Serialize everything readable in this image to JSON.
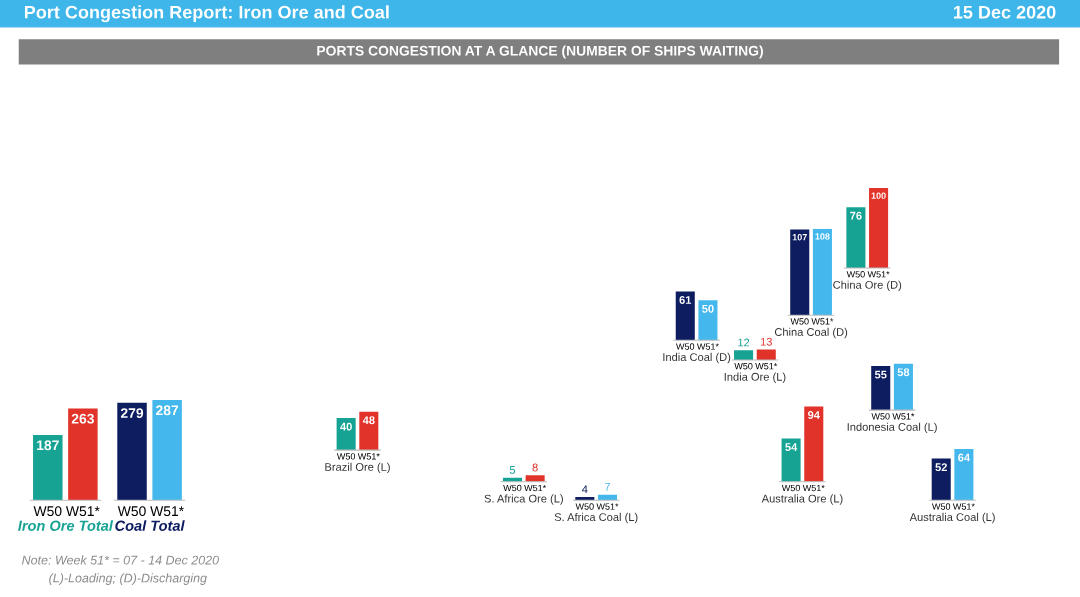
{
  "chart_data": [
    {
      "type": "other",
      "title": "Port Congestion Report: Iron Ore and Coal",
      "subtitle": "PORTS CONGESTION AT A GLANCE (NUMBER OF SHIPS WAITING)",
      "annotations": [
        "15 Dec 2020",
        "Note: Week 51* = 07 - 14 Dec 2020",
        "(L)-Loading; (D)-Discharging"
      ]
    },
    {
      "type": "bar",
      "categories": [
        "W50",
        "W51*"
      ],
      "values": [
        187,
        263
      ],
      "colors": [
        "#16a394",
        "#e1332a"
      ],
      "data_labels": true,
      "xlabel": "Iron Ore Total",
      "tick_labels": "x"
    },
    {
      "type": "bar",
      "categories": [
        "W50",
        "W51*"
      ],
      "values": [
        279,
        287
      ],
      "colors": [
        "#0d1d5f",
        "#44b8ec"
      ],
      "data_labels": true,
      "xlabel": "Coal Total",
      "tick_labels": "x"
    },
    {
      "type": "bar",
      "categories": [
        "W50",
        "W51*"
      ],
      "values": [
        40,
        48
      ],
      "colors": [
        "#16a394",
        "#e1332a"
      ],
      "data_labels": true,
      "xlabel": "Brazil Ore (L)",
      "tick_labels": "x"
    },
    {
      "type": "bar",
      "categories": [
        "W50",
        "W51*"
      ],
      "values": [
        5,
        8
      ],
      "colors": [
        "#16a394",
        "#e1332a"
      ],
      "data_labels": true,
      "xlabel": "S. Africa Ore (L)",
      "tick_labels": "x"
    },
    {
      "type": "bar",
      "categories": [
        "W50",
        "W51*"
      ],
      "values": [
        4,
        7
      ],
      "colors": [
        "#0d1d5f",
        "#44b8ec"
      ],
      "data_labels": true,
      "xlabel": "S. Africa Coal (L)",
      "tick_labels": "x"
    },
    {
      "type": "bar",
      "categories": [
        "W50",
        "W51*"
      ],
      "values": [
        61,
        50
      ],
      "colors": [
        "#0d1d5f",
        "#44b8ec"
      ],
      "data_labels": true,
      "xlabel": "India Coal (D)",
      "tick_labels": "x"
    },
    {
      "type": "bar",
      "categories": [
        "W50",
        "W51*"
      ],
      "values": [
        12,
        13
      ],
      "colors": [
        "#16a394",
        "#e1332a"
      ],
      "data_labels": true,
      "xlabel": "India Ore (L)",
      "tick_labels": "x"
    },
    {
      "type": "bar",
      "categories": [
        "W50",
        "W51*"
      ],
      "values": [
        107,
        108
      ],
      "colors": [
        "#0d1d5f",
        "#44b8ec"
      ],
      "data_labels": true,
      "xlabel": "China Coal (D)",
      "tick_labels": "x"
    },
    {
      "type": "bar",
      "categories": [
        "W50",
        "W51*"
      ],
      "values": [
        76,
        100
      ],
      "colors": [
        "#16a394",
        "#e1332a"
      ],
      "data_labels": true,
      "xlabel": "China Ore (D)",
      "tick_labels": "x"
    },
    {
      "type": "bar",
      "categories": [
        "W50",
        "W51*"
      ],
      "values": [
        55,
        58
      ],
      "colors": [
        "#0d1d5f",
        "#44b8ec"
      ],
      "data_labels": true,
      "xlabel": "Indonesia Coal (L)",
      "tick_labels": "x"
    },
    {
      "type": "bar",
      "categories": [
        "W50",
        "W51*"
      ],
      "values": [
        54,
        94
      ],
      "colors": [
        "#16a394",
        "#e1332a"
      ],
      "data_labels": true,
      "xlabel": "Australia Ore (L)",
      "tick_labels": "x"
    },
    {
      "type": "bar",
      "categories": [
        "W50",
        "W51*"
      ],
      "values": [
        52,
        64
      ],
      "colors": [
        "#0d1d5f",
        "#44b8ec"
      ],
      "data_labels": true,
      "xlabel": "Australia Coal (L)",
      "tick_labels": "x"
    }
  ]
}
